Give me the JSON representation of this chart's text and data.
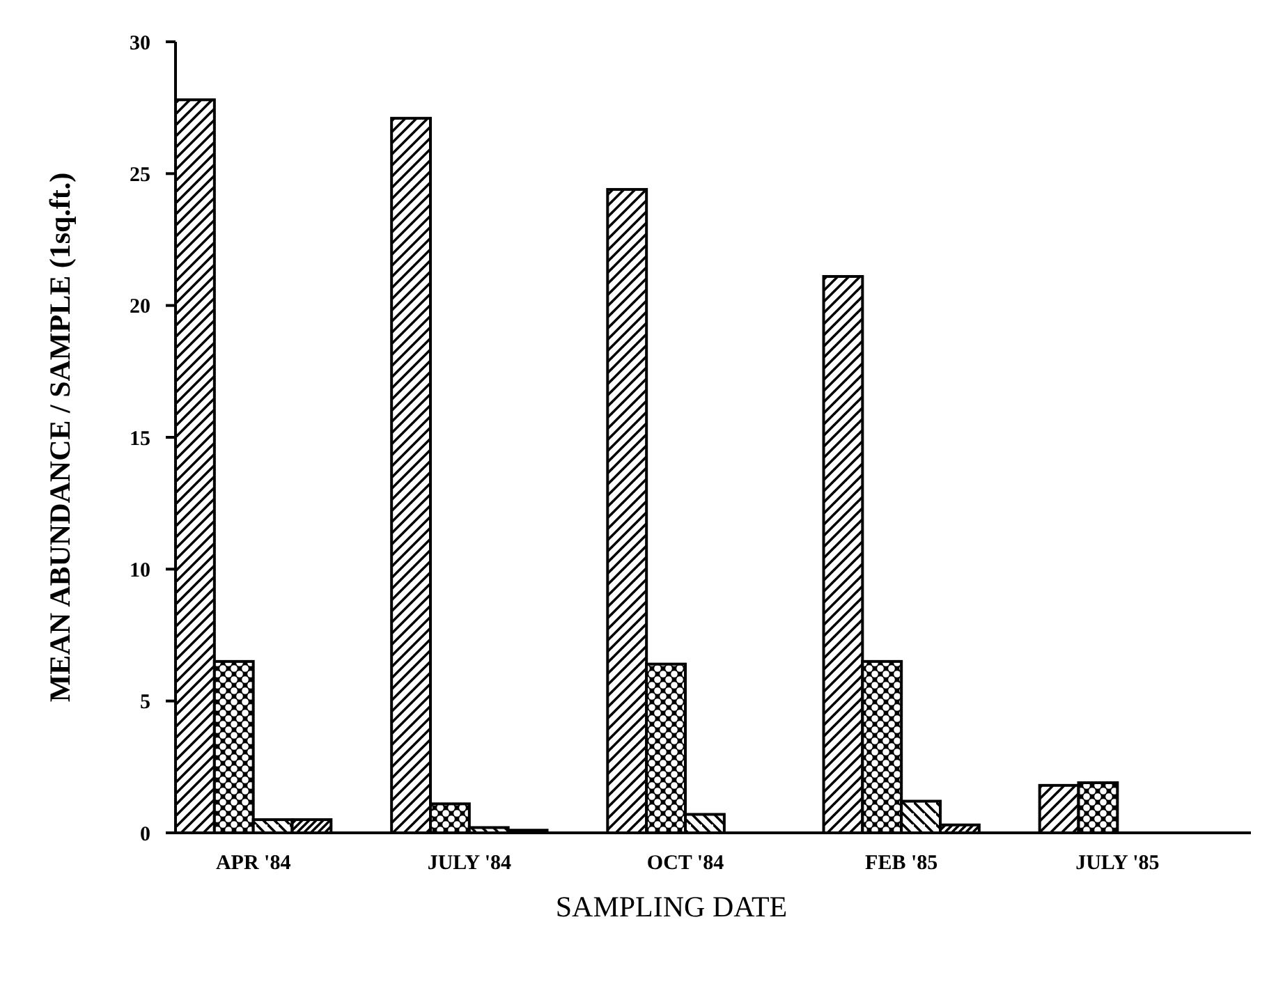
{
  "chart_data": {
    "type": "bar",
    "xlabel": "SAMPLING DATE",
    "ylabel": "MEAN ABUNDANCE / SAMPLE (1sq.ft.)",
    "categories": [
      "APR '84",
      "JULY '84",
      "OCT '84",
      "FEB '85",
      "JULY '85"
    ],
    "series": [
      {
        "color": "#000000",
        "values": [
          27.8,
          27.1,
          24.4,
          21.1,
          1.8
        ]
      },
      {
        "color": "#000000",
        "values": [
          6.5,
          1.1,
          6.4,
          6.5,
          1.9
        ]
      },
      {
        "color": "#000000",
        "values": [
          0.5,
          0.2,
          0.7,
          1.2,
          null
        ]
      },
      {
        "color": "#000000",
        "values": [
          0.5,
          0.1,
          null,
          0.3,
          null
        ]
      }
    ],
    "ylim": [
      0,
      30
    ],
    "yticks": [
      0,
      5,
      10,
      15,
      20,
      25,
      30
    ],
    "grid": false
  }
}
